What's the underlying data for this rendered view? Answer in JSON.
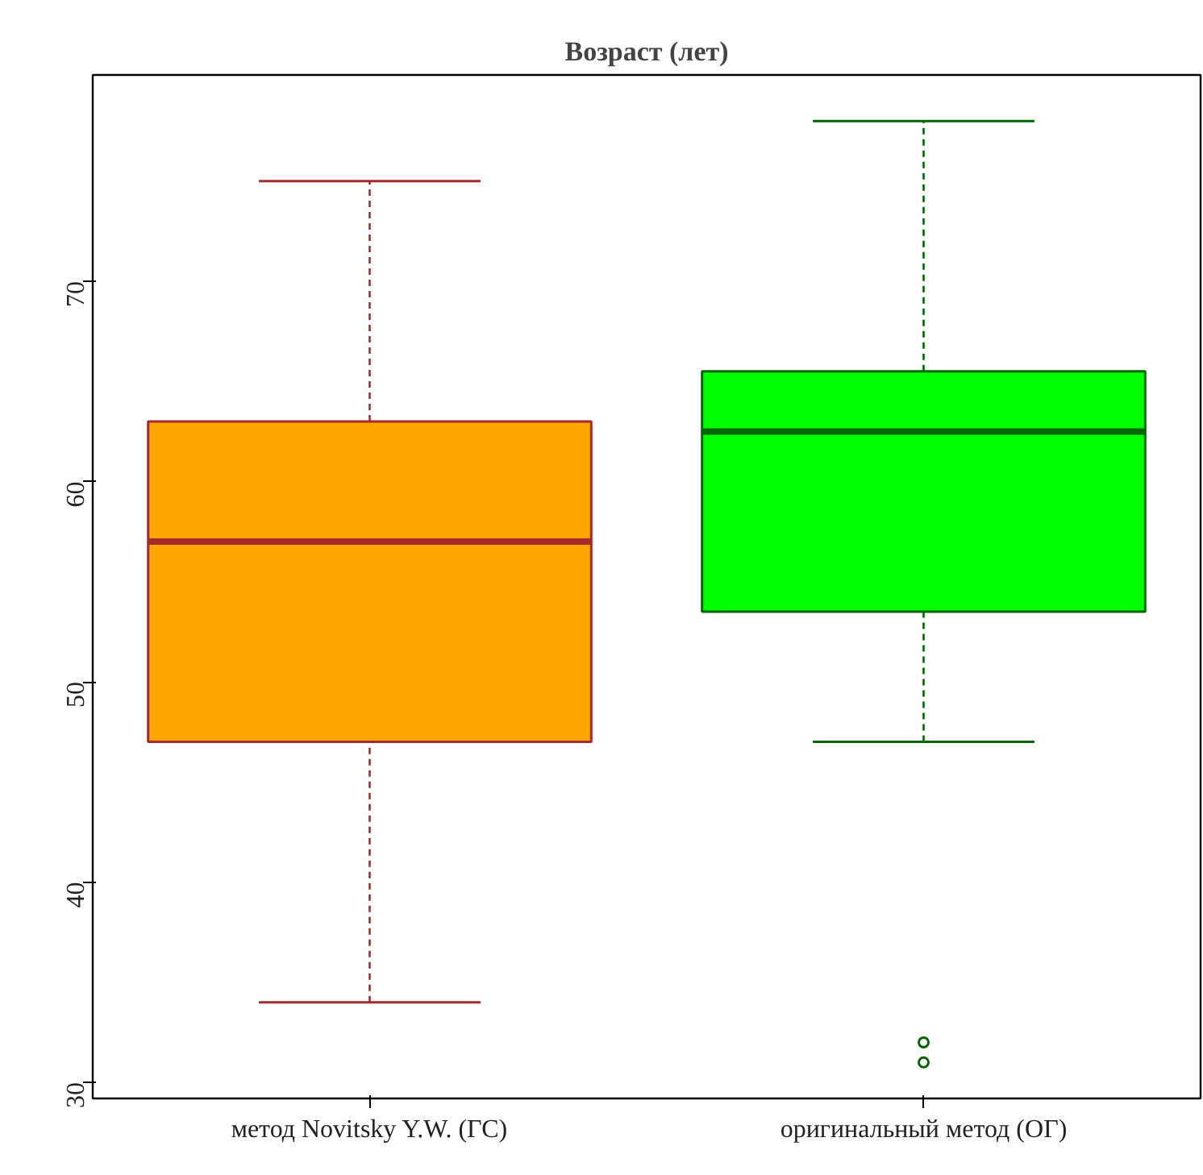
{
  "chart_data": {
    "type": "box",
    "title": "Возраст (лет)",
    "categories": [
      "метод Novitsky Y.W. (ГС)",
      "оригинальный метод (ОГ)"
    ],
    "colors": [
      "#ffa500",
      "#00ff00"
    ],
    "boxes": [
      {
        "low": 34,
        "q1": 47,
        "median": 57,
        "q3": 63,
        "high": 75
      },
      {
        "low": 47,
        "q1": 53.5,
        "median": 62.5,
        "q3": 65.5,
        "high": 78,
        "outliers": [
          32,
          31
        ]
      }
    ],
    "ylim": [
      29.2,
      80.3
    ],
    "yticks": [
      30,
      40,
      50,
      60,
      70
    ],
    "grid": false
  }
}
